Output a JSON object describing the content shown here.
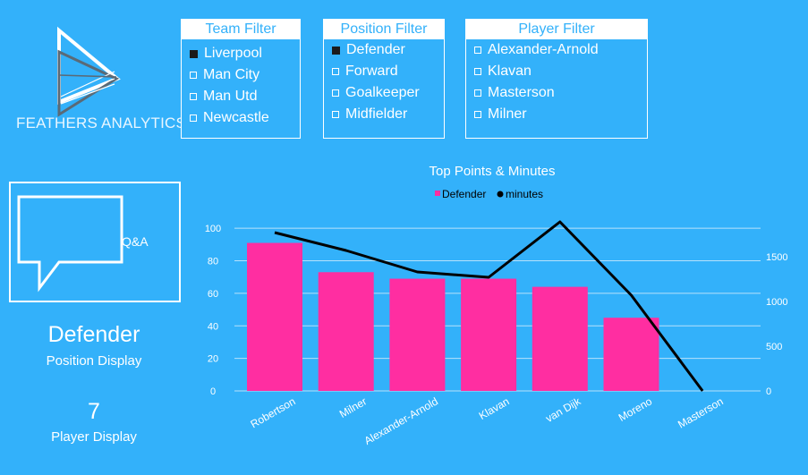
{
  "brand": {
    "name": "FEATHERS ANALYTICS"
  },
  "filters": [
    {
      "title": "Team Filter",
      "items": [
        {
          "label": "Liverpool",
          "checked": true
        },
        {
          "label": "Man City",
          "checked": false
        },
        {
          "label": "Man Utd",
          "checked": false
        },
        {
          "label": "Newcastle",
          "checked": false
        }
      ]
    },
    {
      "title": "Position Filter",
      "items": [
        {
          "label": "Defender",
          "checked": true
        },
        {
          "label": "Forward",
          "checked": false
        },
        {
          "label": "Goalkeeper",
          "checked": false
        },
        {
          "label": "Midfielder",
          "checked": false
        }
      ]
    },
    {
      "title": "Player Filter",
      "items": [
        {
          "label": "Alexander-Arnold",
          "checked": false
        },
        {
          "label": "Klavan",
          "checked": false
        },
        {
          "label": "Masterson",
          "checked": false
        },
        {
          "label": "Milner",
          "checked": false
        }
      ]
    }
  ],
  "qa": {
    "label": "Q&A"
  },
  "position_display": {
    "value": "Defender",
    "label": "Position Display"
  },
  "player_display": {
    "value": "7",
    "label": "Player Display"
  },
  "colors": {
    "background": "#33b1fa",
    "bar": "#ff2ea1",
    "line": "#000000"
  },
  "chart_data": {
    "type": "bar",
    "title": "Top Points & Minutes",
    "categories": [
      "Robertson",
      "Milner",
      "Alexander-Arnold",
      "Klavan",
      "van Dijk",
      "Moreno",
      "Masterson"
    ],
    "series": [
      {
        "name": "Defender",
        "type": "bar",
        "axis": "left",
        "values": [
          91,
          73,
          69,
          69,
          64,
          45,
          0
        ]
      },
      {
        "name": "minutes",
        "type": "line",
        "axis": "right",
        "values": [
          1770,
          1570,
          1330,
          1270,
          1890,
          1070,
          0
        ]
      }
    ],
    "y_left": {
      "ticks": [
        0,
        20,
        40,
        60,
        80,
        100
      ],
      "ylim": [
        0,
        110
      ]
    },
    "y_right": {
      "ticks": [
        0,
        500,
        1000,
        1500
      ],
      "ylim": [
        0,
        2000
      ]
    },
    "legend_position": "top-center",
    "grid": true
  }
}
